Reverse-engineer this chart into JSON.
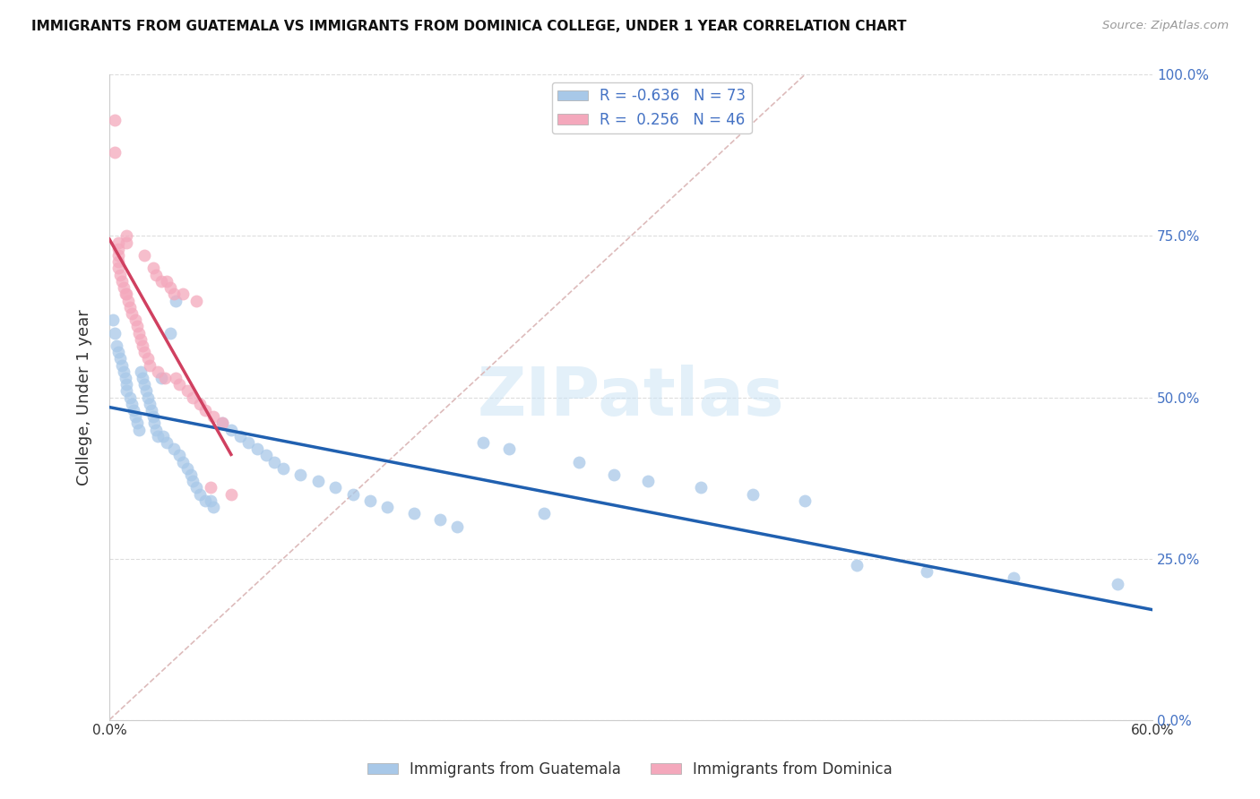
{
  "title": "IMMIGRANTS FROM GUATEMALA VS IMMIGRANTS FROM DOMINICA COLLEGE, UNDER 1 YEAR CORRELATION CHART",
  "source": "Source: ZipAtlas.com",
  "ylabel": "College, Under 1 year",
  "legend_label1": "Immigrants from Guatemala",
  "legend_label2": "Immigrants from Dominica",
  "R1": -0.636,
  "N1": 73,
  "R2": 0.256,
  "N2": 46,
  "color1": "#a8c8e8",
  "color2": "#f4a8bc",
  "trend_color1": "#2060b0",
  "trend_color2": "#d04060",
  "xmin": 0.0,
  "xmax": 0.6,
  "ymin": 0.0,
  "ymax": 1.0,
  "guatemala_x": [
    0.002,
    0.003,
    0.004,
    0.005,
    0.006,
    0.007,
    0.008,
    0.009,
    0.01,
    0.01,
    0.012,
    0.013,
    0.014,
    0.015,
    0.016,
    0.017,
    0.018,
    0.019,
    0.02,
    0.021,
    0.022,
    0.023,
    0.024,
    0.025,
    0.026,
    0.027,
    0.028,
    0.03,
    0.031,
    0.033,
    0.035,
    0.037,
    0.038,
    0.04,
    0.042,
    0.045,
    0.047,
    0.048,
    0.05,
    0.052,
    0.055,
    0.058,
    0.06,
    0.065,
    0.07,
    0.075,
    0.08,
    0.085,
    0.09,
    0.095,
    0.1,
    0.11,
    0.12,
    0.13,
    0.14,
    0.15,
    0.16,
    0.175,
    0.19,
    0.2,
    0.215,
    0.23,
    0.25,
    0.27,
    0.29,
    0.31,
    0.34,
    0.37,
    0.4,
    0.43,
    0.47,
    0.52,
    0.58
  ],
  "guatemala_y": [
    0.62,
    0.6,
    0.58,
    0.57,
    0.56,
    0.55,
    0.54,
    0.53,
    0.52,
    0.51,
    0.5,
    0.49,
    0.48,
    0.47,
    0.46,
    0.45,
    0.54,
    0.53,
    0.52,
    0.51,
    0.5,
    0.49,
    0.48,
    0.47,
    0.46,
    0.45,
    0.44,
    0.53,
    0.44,
    0.43,
    0.6,
    0.42,
    0.65,
    0.41,
    0.4,
    0.39,
    0.38,
    0.37,
    0.36,
    0.35,
    0.34,
    0.34,
    0.33,
    0.46,
    0.45,
    0.44,
    0.43,
    0.42,
    0.41,
    0.4,
    0.39,
    0.38,
    0.37,
    0.36,
    0.35,
    0.34,
    0.33,
    0.32,
    0.31,
    0.3,
    0.43,
    0.42,
    0.32,
    0.4,
    0.38,
    0.37,
    0.36,
    0.35,
    0.34,
    0.24,
    0.23,
    0.22,
    0.21
  ],
  "dominica_x": [
    0.003,
    0.003,
    0.005,
    0.005,
    0.005,
    0.005,
    0.005,
    0.006,
    0.007,
    0.008,
    0.009,
    0.01,
    0.01,
    0.01,
    0.011,
    0.012,
    0.013,
    0.015,
    0.016,
    0.017,
    0.018,
    0.019,
    0.02,
    0.02,
    0.022,
    0.023,
    0.025,
    0.027,
    0.028,
    0.03,
    0.032,
    0.033,
    0.035,
    0.037,
    0.038,
    0.04,
    0.042,
    0.045,
    0.048,
    0.05,
    0.052,
    0.055,
    0.058,
    0.06,
    0.065,
    0.07
  ],
  "dominica_y": [
    0.93,
    0.88,
    0.74,
    0.73,
    0.72,
    0.71,
    0.7,
    0.69,
    0.68,
    0.67,
    0.66,
    0.75,
    0.74,
    0.66,
    0.65,
    0.64,
    0.63,
    0.62,
    0.61,
    0.6,
    0.59,
    0.58,
    0.57,
    0.72,
    0.56,
    0.55,
    0.7,
    0.69,
    0.54,
    0.68,
    0.53,
    0.68,
    0.67,
    0.66,
    0.53,
    0.52,
    0.66,
    0.51,
    0.5,
    0.65,
    0.49,
    0.48,
    0.36,
    0.47,
    0.46,
    0.35
  ],
  "ref_line_x": [
    0.0,
    0.4
  ],
  "ref_line_y": [
    0.0,
    1.0
  ],
  "grid_color": "#dddddd",
  "bg_color": "#ffffff",
  "ref_line_color": "#ddbbbb",
  "ytick_right_color": "#4472c4",
  "xtick_color": "#333333"
}
